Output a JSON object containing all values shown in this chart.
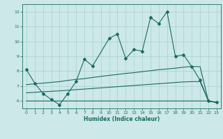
{
  "bg_color": "#cce8e8",
  "line_color": "#1a6b60",
  "grid_color": "#aacfcf",
  "xlabel": "Humidex (Indice chaleur)",
  "ylim": [
    5.5,
    12.5
  ],
  "xlim": [
    -0.5,
    23.5
  ],
  "yticks": [
    6,
    7,
    8,
    9,
    10,
    11,
    12
  ],
  "xticks": [
    0,
    1,
    2,
    3,
    4,
    5,
    6,
    7,
    8,
    9,
    10,
    11,
    12,
    13,
    14,
    15,
    16,
    17,
    18,
    19,
    20,
    21,
    22,
    23
  ],
  "series1_x": [
    0,
    1,
    2,
    3,
    4,
    5,
    6,
    7,
    8,
    10,
    11,
    12,
    13,
    14,
    15,
    16,
    17,
    18,
    19,
    20,
    21,
    22,
    23
  ],
  "series1_y": [
    8.1,
    7.2,
    6.5,
    6.1,
    5.75,
    6.5,
    7.3,
    8.8,
    8.35,
    10.2,
    10.5,
    8.85,
    9.45,
    9.35,
    11.6,
    11.2,
    12.0,
    9.0,
    9.1,
    8.3,
    7.4,
    6.0,
    5.9
  ],
  "series2_x": [
    0,
    1,
    2,
    3,
    4,
    5,
    6,
    7,
    8,
    9,
    10,
    11,
    12,
    13,
    14,
    15,
    16,
    17,
    18,
    19,
    20,
    21,
    22,
    23
  ],
  "series2_y": [
    7.1,
    7.15,
    7.2,
    7.25,
    7.3,
    7.38,
    7.45,
    7.5,
    7.58,
    7.65,
    7.72,
    7.78,
    7.85,
    7.9,
    7.97,
    8.03,
    8.1,
    8.15,
    8.2,
    8.27,
    8.32,
    8.3,
    6.0,
    5.9
  ],
  "series3_x": [
    0,
    1,
    2,
    3,
    4,
    5,
    6,
    7,
    8,
    9,
    10,
    11,
    12,
    13,
    14,
    15,
    16,
    17,
    18,
    19,
    20,
    21,
    22,
    23
  ],
  "series3_y": [
    6.55,
    6.58,
    6.62,
    6.65,
    6.68,
    6.72,
    6.76,
    6.8,
    6.84,
    6.88,
    6.92,
    6.96,
    7.0,
    7.04,
    7.08,
    7.12,
    7.16,
    7.2,
    7.24,
    7.28,
    7.3,
    7.3,
    6.0,
    5.9
  ],
  "series4_x": [
    0,
    1,
    2,
    3,
    4,
    5,
    6,
    7,
    8,
    9,
    10,
    11,
    12,
    13,
    14,
    15,
    16,
    17,
    18,
    19,
    20,
    21,
    22,
    23
  ],
  "series4_y": [
    6.0,
    6.0,
    6.0,
    6.0,
    6.0,
    6.0,
    6.0,
    6.0,
    6.0,
    6.0,
    6.0,
    6.0,
    6.0,
    6.0,
    6.0,
    6.0,
    6.0,
    6.0,
    6.0,
    6.0,
    6.0,
    6.0,
    6.0,
    5.9
  ],
  "markersize": 2.0,
  "linewidth": 0.8,
  "title_fontsize": 6.5,
  "tick_fontsize": 4.5,
  "xlabel_fontsize": 5.5
}
